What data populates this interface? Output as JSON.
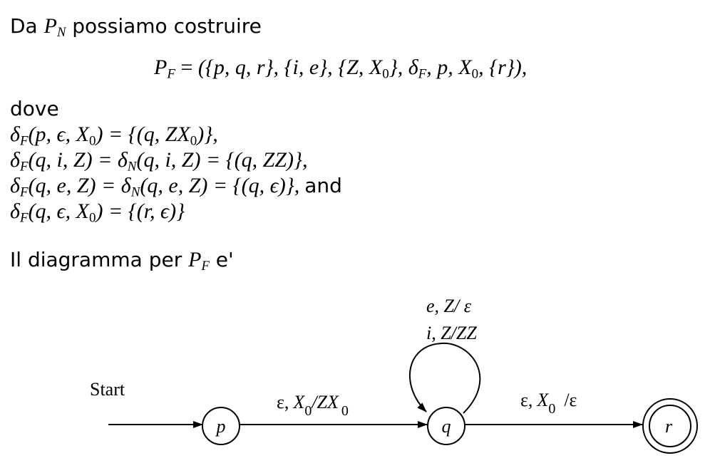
{
  "intro": {
    "prefix": "Da",
    "pn_sym": "P",
    "pn_sub": "N",
    "suffix": "possiamo costruire"
  },
  "definition": {
    "lhs_sym": "P",
    "lhs_sub": "F",
    "eq": "=",
    "states": "({p, q, r},",
    "inputs": "{i, e},",
    "stack": "{Z, X",
    "stack_sub": "0",
    "stack_end": "},",
    "delta": "δ",
    "delta_sub": "F",
    "tail": ", p, X",
    "tail_sub": "0",
    "final": ", {r}),"
  },
  "dove": "dove",
  "transitions": [
    {
      "lhs": "(p, ϵ, X",
      "lhs_sub": "0",
      "rhs": ") = {(q, ZX",
      "rhs_sub": "0",
      "end": ")},",
      "mid": "",
      "mid_sub": "",
      "and": ""
    },
    {
      "lhs": "(q, i, Z) = ",
      "lhs_sub": "",
      "rhs": "(q, i, Z) = {(q, ZZ)},",
      "rhs_sub": "",
      "end": "",
      "mid": "δ",
      "mid_sub": "N",
      "and": ""
    },
    {
      "lhs": "(q, e, Z) = ",
      "lhs_sub": "",
      "rhs": "(q, e, Z) = {(q, ϵ)},",
      "rhs_sub": "",
      "end": "",
      "mid": "δ",
      "mid_sub": "N",
      "and": "and"
    },
    {
      "lhs": "(q, ϵ, X",
      "lhs_sub": "0",
      "rhs": ") = {(r, ϵ)}",
      "rhs_sub": "",
      "end": "",
      "mid": "",
      "mid_sub": "",
      "and": ""
    }
  ],
  "diagram_caption": {
    "prefix": "Il diagramma per",
    "sym": "P",
    "sub": "F",
    "suffix": "e'"
  },
  "diagram": {
    "start_label": "Start",
    "states": [
      "p",
      "q",
      "r"
    ],
    "accepting": "r",
    "edge_pq": {
      "eps": "ε,",
      "x": "X",
      "x_sub": "0",
      "mid": "/ZX",
      "mid_sub": "0"
    },
    "edge_qr": {
      "eps": "ε,",
      "x": "X",
      "x_sub": "0",
      "end": "/ε"
    },
    "loop_q": {
      "line1": "e, Z/ ε",
      "line2": "i, Z/ZZ"
    }
  }
}
